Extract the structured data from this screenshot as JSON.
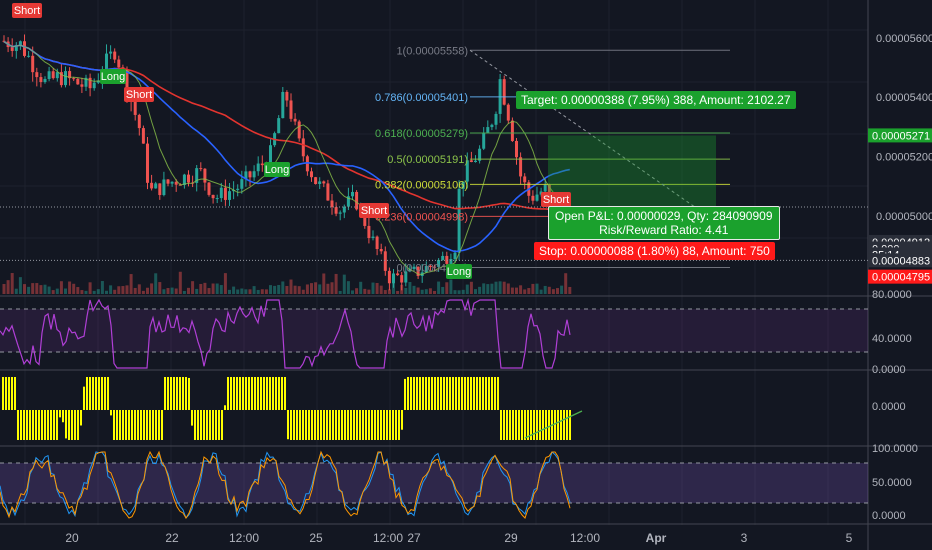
{
  "colors": {
    "background": "#131722",
    "grid": "#1e222d",
    "candle_up": "#26a69a",
    "candle_down": "#ef5350",
    "ma_red": "#e3342f",
    "ma_blue": "#2962ff",
    "ma_green": "#8bc34a",
    "target_green": "#1ba12d",
    "stop_red": "#ff1a1a",
    "rsi_purple": "#b03fd6",
    "macd_yellow": "#ffff00"
  },
  "price_axis": {
    "ticks": [
      "0.00005600",
      "0.00005400",
      "0.00005200",
      "0.00005000",
      "0.00004800"
    ],
    "badges": [
      {
        "label": "0.00005271",
        "price": 5.271e-05,
        "color": "#1ba12d"
      },
      {
        "label": "0.00004912",
        "price": 4.912e-05,
        "color": "#2a2e39"
      },
      {
        "label": "0.000",
        "price": 4.89e-05,
        "color": "#2a2e39"
      },
      {
        "label": "25:14",
        "price": 4.87e-05,
        "color": "#2a2e39"
      },
      {
        "label": "0.00004883",
        "price": 4.85e-05,
        "color": "#2a2e39"
      },
      {
        "label": "0.00004795",
        "price": 4.795e-05,
        "color": "#ff1a1a"
      }
    ]
  },
  "rsi_axis": {
    "ticks": [
      "80.0000",
      "40.0000"
    ]
  },
  "macd_axis": {
    "ticks": [
      "0.0000",
      "0.0000"
    ]
  },
  "stoch_axis": {
    "ticks": [
      "100.0000",
      "50.0000",
      "0.0000"
    ]
  },
  "time_axis": {
    "labels": [
      "20",
      "22",
      "12:00",
      "25",
      "12:00",
      "27",
      "29",
      "12:00",
      "Apr",
      "3",
      "5"
    ]
  },
  "fibonacci": [
    {
      "label": "1(0.00005558)",
      "price": 5.558e-05,
      "color": "#787b86"
    },
    {
      "label": "0.786(0.00005401)",
      "price": 5.401e-05,
      "color": "#64b5f6"
    },
    {
      "label": "0.618(0.00005279)",
      "price": 5.279e-05,
      "color": "#4caf50"
    },
    {
      "label": "0.5(0.00005191)",
      "price": 5.191e-05,
      "color": "#8bc34a"
    },
    {
      "label": "0.382(0.00005106)",
      "price": 5.106e-05,
      "color": "#cddc39"
    },
    {
      "label": "0.236(0.00004998)",
      "price": 4.998e-05,
      "color": "#ef5350"
    },
    {
      "label": "0(0.00004826)",
      "price": 4.826e-05,
      "color": "#787b86"
    }
  ],
  "signals": [
    {
      "label": "Short",
      "type": "short"
    },
    {
      "label": "Long",
      "type": "long"
    },
    {
      "label": "Short",
      "type": "short"
    },
    {
      "label": "Long",
      "type": "long"
    },
    {
      "label": "Short",
      "type": "short"
    },
    {
      "label": "Long",
      "type": "long"
    },
    {
      "label": "Short",
      "type": "short"
    }
  ],
  "position": {
    "target": "Target: 0.00000388 (7.95%) 388, Amount: 2102.27",
    "pnl_line1": "Open P&L: 0.00000029, Qty: 284090909",
    "pnl_line2": "Risk/Reward Ratio: 4.41",
    "stop": "Stop: 0.00000088 (1.80%) 88, Amount: 750"
  }
}
